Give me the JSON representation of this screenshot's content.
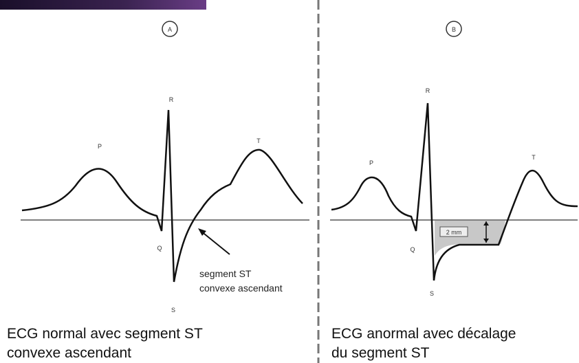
{
  "panels": [
    {
      "marker": "A",
      "waves": {
        "p": "P",
        "r": "R",
        "t": "T",
        "q": "Q",
        "s": "S"
      },
      "annotation": [
        "segment ST",
        "convexe ascendant"
      ],
      "caption": [
        "ECG normal avec segment ST",
        "convexe ascendant"
      ]
    },
    {
      "marker": "B",
      "waves": {
        "p": "P",
        "r": "R",
        "t": "T",
        "q": "Q",
        "s": "S"
      },
      "measure": "2 mm",
      "caption": [
        "ECG anormal avec décalage",
        "du segment ST"
      ]
    }
  ]
}
